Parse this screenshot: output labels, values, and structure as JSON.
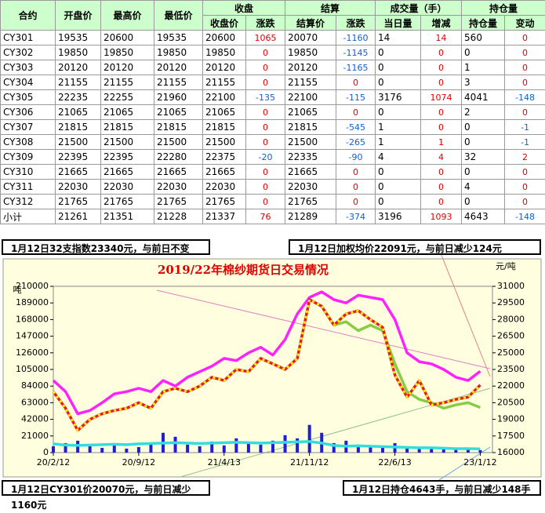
{
  "table": {
    "header_top": [
      "合约",
      "开盘价",
      "最高价",
      "最低价",
      "收盘",
      "结算",
      "成交量（手）",
      "持仓量"
    ],
    "header_sub": [
      "收盘价",
      "涨跌",
      "结算价",
      "涨跌",
      "当日量",
      "增减",
      "持仓量",
      "变动"
    ],
    "rows": [
      [
        "CY301",
        "19535",
        "20600",
        "19535",
        "20600",
        "1065",
        "20070",
        "-1160",
        "14",
        "14",
        "560",
        "0"
      ],
      [
        "CY302",
        "19850",
        "19850",
        "19850",
        "19850",
        "0",
        "19850",
        "-1145",
        "0",
        "0",
        "0",
        "0"
      ],
      [
        "CY303",
        "20120",
        "20120",
        "20120",
        "20120",
        "0",
        "20120",
        "-1165",
        "0",
        "0",
        "1",
        "0"
      ],
      [
        "CY304",
        "21155",
        "21155",
        "21155",
        "21155",
        "0",
        "21155",
        "0",
        "0",
        "0",
        "3",
        "0"
      ],
      [
        "CY305",
        "22235",
        "22255",
        "21960",
        "22100",
        "-135",
        "22100",
        "-115",
        "3176",
        "1074",
        "4041",
        "-148"
      ],
      [
        "CY306",
        "21065",
        "21065",
        "21065",
        "21065",
        "0",
        "21065",
        "0",
        "0",
        "0",
        "2",
        "0"
      ],
      [
        "CY307",
        "21815",
        "21815",
        "21815",
        "21815",
        "0",
        "21815",
        "-545",
        "1",
        "0",
        "0",
        "-1"
      ],
      [
        "CY308",
        "21500",
        "21500",
        "21500",
        "21500",
        "0",
        "21500",
        "-265",
        "1",
        "1",
        "0",
        "-1"
      ],
      [
        "CY309",
        "22395",
        "22395",
        "22280",
        "22375",
        "-20",
        "22335",
        "-90",
        "4",
        "4",
        "32",
        "2"
      ],
      [
        "CY310",
        "21665",
        "21665",
        "21665",
        "21665",
        "0",
        "21665",
        "0",
        "0",
        "0",
        "0",
        "0"
      ],
      [
        "CY311",
        "22030",
        "22030",
        "22030",
        "22030",
        "0",
        "22030",
        "0",
        "0",
        "0",
        "4",
        "0"
      ],
      [
        "CY312",
        "21765",
        "21765",
        "21765",
        "21765",
        "0",
        "21765",
        "0",
        "0",
        "0",
        "0",
        "0"
      ],
      [
        "小计",
        "21261",
        "21351",
        "21228",
        "21337",
        "76",
        "21289",
        "-374",
        "3196",
        "1093",
        "4643",
        "-148"
      ]
    ]
  },
  "annotations": [
    "1月12日32支指数23340元，与前日不变",
    "1月12日加权均价22091元，与前日减少124元",
    "1月12日CY301价20070元，与前日减少1160元",
    "1月12日持仓4643手，与前日减少148手"
  ],
  "chart_data": {
    "type": "combo",
    "title": "2019/22年棉纱期货日交易情况",
    "y_label": "吨",
    "y2_label": "元/吨",
    "x": [
      0,
      1,
      2,
      3,
      4,
      5,
      6,
      7,
      8,
      9,
      10,
      11,
      12,
      13,
      14,
      15,
      16,
      17,
      18,
      19,
      20,
      21,
      22,
      23,
      24,
      25,
      26,
      27,
      28,
      29,
      30,
      31,
      32,
      33,
      34,
      35
    ],
    "xlim": [
      0,
      36
    ],
    "xticks": [
      {
        "value": 0,
        "label": "20/2/12"
      },
      {
        "value": 7,
        "label": "20/9/12"
      },
      {
        "value": 14,
        "label": "21/4/13"
      },
      {
        "value": 21,
        "label": "21/11/12"
      },
      {
        "value": 28,
        "label": "22/6/13"
      },
      {
        "value": 35,
        "label": "23/1/12"
      }
    ],
    "ylim": [
      0,
      210000
    ],
    "yticks": [
      0,
      21000,
      42000,
      63000,
      84000,
      105000,
      126000,
      147000,
      168000,
      189000,
      210000
    ],
    "y2lim": [
      16000,
      31000
    ],
    "y2ticks": [
      16000,
      17500,
      19000,
      20500,
      22000,
      23500,
      25000,
      26500,
      28000,
      29500,
      31000
    ],
    "series": [
      {
        "type": "bar",
        "color": "#1f1fd0",
        "values": [
          8000,
          12000,
          15000,
          10000,
          6000,
          9000,
          5000,
          7000,
          12000,
          25000,
          20000,
          10000,
          8000,
          14000,
          9000,
          18000,
          12000,
          10000,
          15000,
          22000,
          18000,
          35000,
          25000,
          12000,
          15000,
          10000,
          8000,
          9000,
          12000,
          7000,
          6000,
          5000,
          4000,
          5000,
          6000,
          3196
        ]
      },
      {
        "type": "line",
        "color": "#33dddd",
        "values": [
          11000,
          9500,
          9000,
          9500,
          10000,
          10500,
          10000,
          11000,
          11500,
          12000,
          12500,
          12000,
          11500,
          12000,
          12500,
          13000,
          12500,
          12000,
          12500,
          13000,
          13500,
          14000,
          12000,
          9000,
          8000,
          8500,
          8000,
          7500,
          7000,
          6500,
          6000,
          6000,
          5500,
          5000,
          5000,
          4643
        ]
      },
      {
        "type": "line",
        "axis": "y2",
        "color": "#ff22ff",
        "values": [
          22500,
          21500,
          19500,
          19800,
          20500,
          21300,
          21500,
          21800,
          21500,
          22500,
          22000,
          22800,
          23300,
          23800,
          24500,
          24300,
          25000,
          25500,
          24800,
          26200,
          28500,
          30000,
          30500,
          29800,
          29500,
          30200,
          30000,
          29800,
          28000,
          25000,
          24200,
          24000,
          23500,
          22800,
          22500,
          23340
        ]
      },
      {
        "type": "line",
        "axis": "y2",
        "color": "#88cc44",
        "values": [
          null,
          null,
          null,
          null,
          null,
          null,
          null,
          null,
          null,
          null,
          null,
          null,
          null,
          null,
          null,
          null,
          null,
          null,
          null,
          null,
          null,
          null,
          null,
          27500,
          27800,
          27000,
          27500,
          27000,
          24000,
          21500,
          20800,
          20500,
          20000,
          20300,
          20500,
          20070
        ]
      },
      {
        "type": "line",
        "axis": "y2",
        "color": "#e02020",
        "values": [
          21500,
          20000,
          18000,
          19000,
          19500,
          19800,
          20000,
          20500,
          20000,
          21500,
          21800,
          21500,
          22000,
          22800,
          22500,
          23500,
          23300,
          24500,
          24000,
          23500,
          24500,
          29800,
          29200,
          27500,
          28500,
          28800,
          28000,
          27300,
          23000,
          21000,
          22500,
          20300,
          20500,
          20800,
          21000,
          22100
        ]
      }
    ]
  }
}
